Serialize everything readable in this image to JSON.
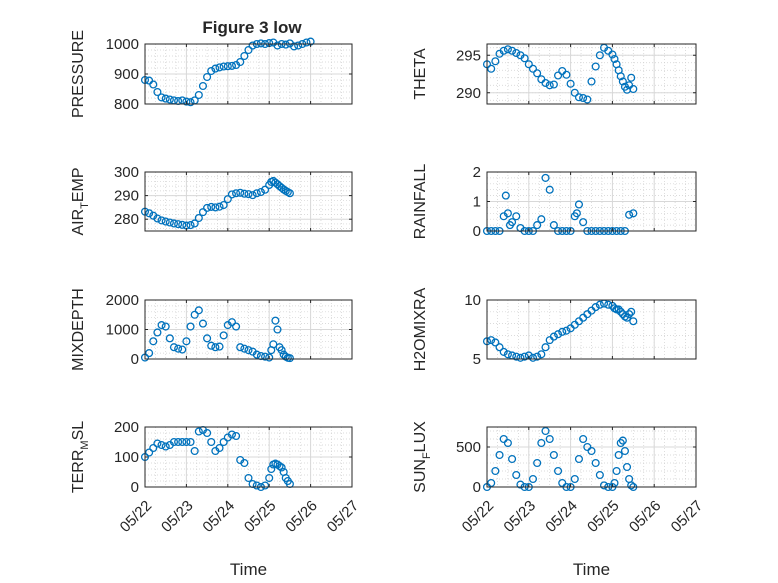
{
  "figure_title": "Figure 3 low",
  "colors": {
    "marker": "#0072BD",
    "axes": "#262626",
    "grid": "#cfcfcf",
    "background": "#ffffff"
  },
  "chart_data": [
    {
      "id": "pressure",
      "type": "scatter",
      "ylabel": "PRESSURE",
      "ylim": [
        800,
        1000
      ],
      "yticks": [
        800,
        900,
        1000
      ],
      "xlim": [
        0,
        5
      ],
      "xticks": [
        "05/22",
        "05/23",
        "05/24",
        "05/25",
        "05/26",
        "05/27"
      ],
      "show_xticklabels": false,
      "grid": true,
      "x": [
        0,
        0.1,
        0.2,
        0.3,
        0.4,
        0.5,
        0.6,
        0.7,
        0.8,
        0.9,
        1,
        1.1,
        1.2,
        1.3,
        1.4,
        1.5,
        1.6,
        1.7,
        1.8,
        1.9,
        2,
        2.1,
        2.2,
        2.3,
        2.4,
        2.5,
        2.6,
        2.7,
        2.8,
        2.9,
        3,
        3.1,
        3.2,
        3.3,
        3.4,
        3.5,
        3.6,
        3.7,
        3.8,
        3.9,
        4
      ],
      "y": [
        880,
        878,
        865,
        840,
        822,
        818,
        815,
        812,
        810,
        812,
        808,
        806,
        812,
        830,
        860,
        890,
        910,
        918,
        922,
        925,
        926,
        927,
        930,
        940,
        960,
        980,
        995,
        1000,
        1002,
        1000,
        1003,
        1005,
        995,
        1000,
        998,
        1002,
        992,
        995,
        1000,
        1005,
        1008
      ]
    },
    {
      "id": "theta",
      "type": "scatter",
      "ylabel": "THETA",
      "ylim": [
        288.5,
        296.5
      ],
      "yticks": [
        290,
        295
      ],
      "xlim": [
        0,
        5
      ],
      "xticks": [
        "05/22",
        "05/23",
        "05/24",
        "05/25",
        "05/26",
        "05/27"
      ],
      "show_xticklabels": false,
      "grid": true,
      "x": [
        0,
        0.1,
        0.2,
        0.3,
        0.4,
        0.5,
        0.6,
        0.7,
        0.8,
        0.9,
        1,
        1.1,
        1.2,
        1.3,
        1.4,
        1.5,
        1.6,
        1.7,
        1.8,
        1.9,
        2,
        2.1,
        2.2,
        2.3,
        2.4,
        2.5,
        2.6,
        2.7,
        2.8,
        2.9,
        3,
        3.05,
        3.1,
        3.15,
        3.2,
        3.25,
        3.3,
        3.35,
        3.4,
        3.45,
        3.5
      ],
      "y": [
        293.8,
        293.2,
        294.2,
        295.2,
        295.6,
        295.8,
        295.6,
        295.3,
        295.0,
        294.6,
        293.8,
        293.2,
        292.6,
        291.8,
        291.3,
        291.0,
        291.1,
        292.3,
        292.9,
        292.4,
        291.2,
        290.0,
        289.4,
        289.3,
        289.1,
        291.5,
        293.5,
        295.0,
        296.0,
        295.6,
        295.1,
        294.5,
        293.8,
        293.0,
        292.2,
        291.5,
        290.8,
        290.4,
        291.0,
        292.0,
        290.5
      ]
    },
    {
      "id": "air_temp",
      "type": "scatter",
      "ylabel": "AIR_TEMP",
      "ylabel_parts": [
        "AIR",
        "T",
        "EMP"
      ],
      "ylim": [
        275,
        300
      ],
      "yticks": [
        280,
        290,
        300
      ],
      "xlim": [
        0,
        5
      ],
      "xticks": [
        "05/22",
        "05/23",
        "05/24",
        "05/25",
        "05/26",
        "05/27"
      ],
      "show_xticklabels": false,
      "grid": true,
      "x": [
        0,
        0.1,
        0.2,
        0.3,
        0.4,
        0.5,
        0.6,
        0.7,
        0.8,
        0.9,
        1,
        1.1,
        1.2,
        1.3,
        1.4,
        1.5,
        1.6,
        1.7,
        1.8,
        1.9,
        2,
        2.1,
        2.2,
        2.3,
        2.4,
        2.5,
        2.6,
        2.7,
        2.8,
        2.9,
        3,
        3.05,
        3.1,
        3.15,
        3.2,
        3.25,
        3.3,
        3.35,
        3.4,
        3.45,
        3.5
      ],
      "y": [
        283.2,
        282.5,
        281.5,
        280.3,
        279.5,
        279.0,
        278.6,
        278.2,
        277.9,
        277.6,
        277.3,
        277.5,
        278.2,
        280.5,
        283.0,
        284.8,
        285.2,
        285.0,
        285.3,
        286.0,
        288.5,
        290.5,
        291.0,
        291.2,
        290.8,
        290.6,
        290.2,
        291.0,
        291.5,
        292.5,
        294.5,
        295.8,
        296.2,
        295.5,
        294.8,
        294.0,
        293.3,
        292.6,
        292.0,
        291.5,
        291.0
      ]
    },
    {
      "id": "rainfall",
      "type": "scatter",
      "ylabel": "RAINFALL",
      "ylim": [
        0,
        2
      ],
      "yticks": [
        0,
        1,
        2
      ],
      "xlim": [
        0,
        5
      ],
      "xticks": [
        "05/22",
        "05/23",
        "05/24",
        "05/25",
        "05/26",
        "05/27"
      ],
      "show_xticklabels": false,
      "grid": true,
      "x": [
        0,
        0.1,
        0.2,
        0.3,
        0.4,
        0.45,
        0.5,
        0.55,
        0.6,
        0.7,
        0.8,
        0.9,
        1,
        1.1,
        1.2,
        1.3,
        1.4,
        1.5,
        1.6,
        1.7,
        1.8,
        1.9,
        2,
        2.1,
        2.15,
        2.2,
        2.3,
        2.4,
        2.5,
        2.6,
        2.7,
        2.8,
        2.9,
        3,
        3.1,
        3.2,
        3.3,
        3.4,
        3.5
      ],
      "y": [
        0,
        0,
        0,
        0,
        0.5,
        1.2,
        0.6,
        0.2,
        0.3,
        0.5,
        0.1,
        0,
        0,
        0,
        0.2,
        0.4,
        1.8,
        1.4,
        0.2,
        0,
        0,
        0,
        0,
        0.5,
        0.6,
        0.9,
        0.3,
        0,
        0,
        0,
        0,
        0,
        0,
        0,
        0,
        0,
        0,
        0.55,
        0.6
      ]
    },
    {
      "id": "mixdepth",
      "type": "scatter",
      "ylabel": "MIXDEPTH",
      "ylim": [
        0,
        2000
      ],
      "yticks": [
        0,
        1000,
        2000
      ],
      "xlim": [
        0,
        5
      ],
      "xticks": [
        "05/22",
        "05/23",
        "05/24",
        "05/25",
        "05/26",
        "05/27"
      ],
      "show_xticklabels": false,
      "grid": true,
      "x": [
        0,
        0.1,
        0.2,
        0.3,
        0.4,
        0.5,
        0.6,
        0.7,
        0.8,
        0.9,
        1,
        1.1,
        1.2,
        1.3,
        1.4,
        1.5,
        1.6,
        1.7,
        1.8,
        1.9,
        2,
        2.1,
        2.2,
        2.3,
        2.4,
        2.5,
        2.6,
        2.7,
        2.8,
        2.9,
        3,
        3.05,
        3.1,
        3.15,
        3.2,
        3.25,
        3.3,
        3.35,
        3.4,
        3.45,
        3.5
      ],
      "y": [
        50,
        200,
        600,
        900,
        1150,
        1100,
        700,
        400,
        350,
        320,
        600,
        1100,
        1500,
        1650,
        1200,
        700,
        450,
        400,
        420,
        800,
        1150,
        1250,
        1100,
        400,
        350,
        300,
        250,
        150,
        100,
        80,
        50,
        300,
        500,
        1300,
        1000,
        400,
        300,
        150,
        80,
        40,
        30
      ]
    },
    {
      "id": "h2omixra",
      "type": "scatter",
      "ylabel": "H2OMIXRA",
      "ylim": [
        5,
        10
      ],
      "yticks": [
        5,
        10
      ],
      "xlim": [
        0,
        5
      ],
      "xticks": [
        "05/22",
        "05/23",
        "05/24",
        "05/25",
        "05/26",
        "05/27"
      ],
      "show_xticklabels": false,
      "grid": true,
      "x": [
        0,
        0.1,
        0.2,
        0.3,
        0.4,
        0.5,
        0.6,
        0.7,
        0.8,
        0.9,
        1,
        1.1,
        1.2,
        1.3,
        1.4,
        1.5,
        1.6,
        1.7,
        1.8,
        1.9,
        2,
        2.1,
        2.2,
        2.3,
        2.4,
        2.5,
        2.6,
        2.7,
        2.8,
        2.9,
        3,
        3.05,
        3.1,
        3.15,
        3.2,
        3.25,
        3.3,
        3.35,
        3.4,
        3.45,
        3.5
      ],
      "y": [
        6.5,
        6.6,
        6.4,
        6.0,
        5.6,
        5.4,
        5.3,
        5.2,
        5.1,
        5.2,
        5.3,
        5.1,
        5.2,
        5.4,
        6.0,
        6.6,
        6.9,
        7.1,
        7.3,
        7.4,
        7.6,
        7.9,
        8.2,
        8.5,
        8.8,
        9.1,
        9.4,
        9.6,
        9.7,
        9.6,
        9.5,
        9.3,
        9.2,
        9.2,
        9.0,
        8.8,
        8.6,
        8.5,
        8.8,
        9.0,
        8.2
      ]
    },
    {
      "id": "terr_msl",
      "type": "scatter",
      "ylabel": "TERR_MSL",
      "ylabel_parts": [
        "TERR",
        "M",
        "SL"
      ],
      "ylim": [
        0,
        200
      ],
      "yticks": [
        0,
        100,
        200
      ],
      "xlim": [
        0,
        5
      ],
      "xticks": [
        "05/22",
        "05/23",
        "05/24",
        "05/25",
        "05/26",
        "05/27"
      ],
      "show_xticklabels": true,
      "grid": true,
      "xlabel": "Time",
      "x": [
        0,
        0.1,
        0.2,
        0.3,
        0.4,
        0.5,
        0.6,
        0.7,
        0.8,
        0.9,
        1,
        1.1,
        1.2,
        1.3,
        1.4,
        1.5,
        1.6,
        1.7,
        1.8,
        1.9,
        2,
        2.1,
        2.2,
        2.3,
        2.4,
        2.5,
        2.6,
        2.7,
        2.8,
        2.9,
        3,
        3.05,
        3.1,
        3.15,
        3.2,
        3.25,
        3.3,
        3.35,
        3.4,
        3.45,
        3.5
      ],
      "y": [
        100,
        115,
        130,
        145,
        140,
        135,
        140,
        150,
        150,
        150,
        150,
        150,
        120,
        185,
        190,
        180,
        150,
        120,
        130,
        150,
        165,
        175,
        170,
        90,
        80,
        30,
        10,
        5,
        0,
        5,
        30,
        60,
        75,
        78,
        75,
        70,
        65,
        50,
        30,
        20,
        10
      ]
    },
    {
      "id": "sun_flux",
      "type": "scatter",
      "ylabel": "SUN_FLUX",
      "ylabel_parts": [
        "SUN",
        "F",
        "LUX"
      ],
      "ylim": [
        0,
        750
      ],
      "yticks": [
        0,
        500
      ],
      "xlim": [
        0,
        5
      ],
      "xticks": [
        "05/22",
        "05/23",
        "05/24",
        "05/25",
        "05/26",
        "05/27"
      ],
      "show_xticklabels": true,
      "grid": true,
      "xlabel": "Time",
      "x": [
        0,
        0.1,
        0.2,
        0.3,
        0.4,
        0.5,
        0.6,
        0.7,
        0.8,
        0.9,
        1,
        1.1,
        1.2,
        1.3,
        1.4,
        1.5,
        1.6,
        1.7,
        1.8,
        1.9,
        2,
        2.1,
        2.2,
        2.3,
        2.4,
        2.5,
        2.6,
        2.7,
        2.8,
        2.9,
        3,
        3.05,
        3.1,
        3.15,
        3.2,
        3.25,
        3.3,
        3.35,
        3.4,
        3.45,
        3.5
      ],
      "y": [
        0,
        50,
        200,
        400,
        600,
        550,
        350,
        150,
        30,
        0,
        0,
        100,
        300,
        550,
        700,
        600,
        400,
        200,
        50,
        0,
        0,
        100,
        350,
        600,
        500,
        450,
        300,
        150,
        20,
        0,
        0,
        50,
        200,
        400,
        550,
        580,
        450,
        250,
        100,
        20,
        0
      ]
    }
  ]
}
